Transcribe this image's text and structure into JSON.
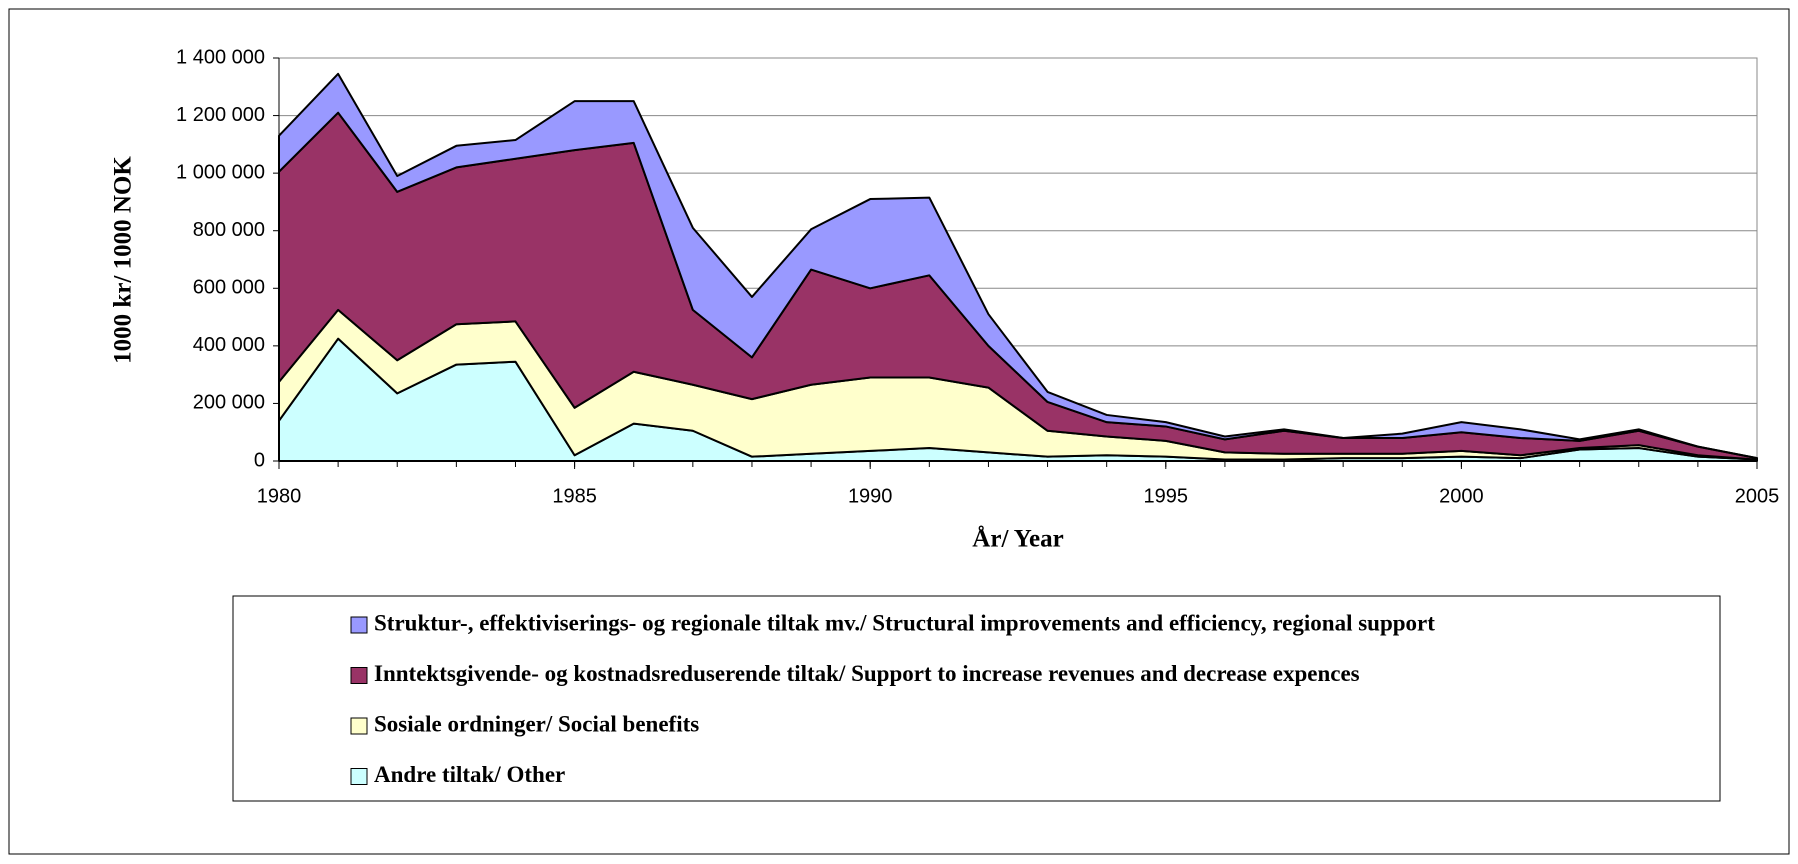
{
  "chart_data": {
    "type": "stacked_area",
    "y_label": "1000 kr/ 1000 NOK",
    "x_label": "År/ Year",
    "x": [
      1980,
      1981,
      1982,
      1983,
      1984,
      1985,
      1986,
      1987,
      1988,
      1989,
      1990,
      1991,
      1992,
      1993,
      1994,
      1995,
      1996,
      1997,
      1998,
      1999,
      2000,
      2001,
      2002,
      2003,
      2004,
      2005
    ],
    "xlim": [
      1980,
      2005
    ],
    "xticks": [
      1980,
      1985,
      1990,
      1995,
      2000,
      2005
    ],
    "ylim": [
      0,
      1400000
    ],
    "yticks": [
      0,
      {
        "value": 200000,
        "label": "200 000"
      },
      {
        "value": 400000,
        "label": "400 000"
      },
      {
        "value": 600000,
        "label": "600 000"
      },
      {
        "value": 800000,
        "label": "800 000"
      },
      {
        "value": 1000000,
        "label": "1 000 000"
      },
      {
        "value": 1200000,
        "label": "1 200 000"
      },
      {
        "value": 1400000,
        "label": "1 400 000"
      }
    ],
    "grid": true,
    "legend": "bottom",
    "series": [
      {
        "name": "Andre tiltak/ Other",
        "color": "#ccffff",
        "values": [
          140000,
          425000,
          235000,
          335000,
          345000,
          20000,
          130000,
          105000,
          15000,
          25000,
          35000,
          45000,
          30000,
          15000,
          20000,
          15000,
          5000,
          5000,
          10000,
          10000,
          15000,
          10000,
          40000,
          45000,
          15000,
          5000
        ]
      },
      {
        "name": "Sosiale ordninger/ Social benefits",
        "color": "#ffffcc",
        "values": [
          135000,
          100000,
          115000,
          140000,
          140000,
          165000,
          180000,
          160000,
          200000,
          240000,
          255000,
          245000,
          225000,
          90000,
          65000,
          55000,
          25000,
          20000,
          15000,
          15000,
          20000,
          10000,
          5000,
          10000,
          5000,
          0
        ]
      },
      {
        "name": "Inntektsgivende- og kostnadsreduserende tiltak/ Support to increase revenues and decrease expences",
        "color": "#993366",
        "values": [
          730000,
          685000,
          585000,
          545000,
          565000,
          895000,
          795000,
          260000,
          145000,
          400000,
          310000,
          355000,
          145000,
          100000,
          50000,
          50000,
          45000,
          80000,
          55000,
          55000,
          65000,
          60000,
          25000,
          50000,
          30000,
          5000
        ]
      },
      {
        "name": "Struktur-, effektiviserings- og regionale tiltak mv./ Structural improvements and efficiency, regional support",
        "color": "#9999ff",
        "values": [
          125000,
          135000,
          55000,
          75000,
          65000,
          170000,
          145000,
          285000,
          210000,
          140000,
          310000,
          270000,
          110000,
          35000,
          25000,
          15000,
          10000,
          5000,
          0,
          15000,
          35000,
          30000,
          5000,
          5000,
          0,
          0
        ]
      }
    ]
  }
}
